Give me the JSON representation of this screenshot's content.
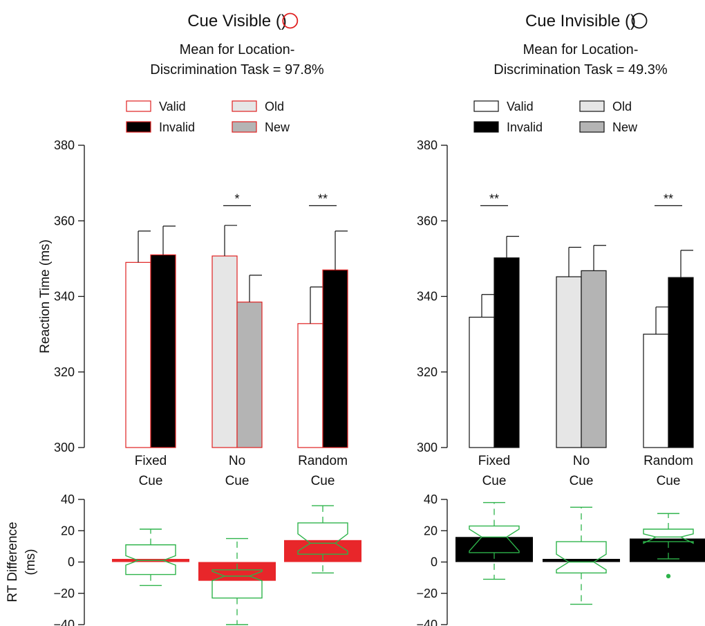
{
  "chart_data": [
    {
      "panel": "visible",
      "type": "bar",
      "title": "Cue Visible (",
      "title_close": ")",
      "title_marker_color": "#e02020",
      "subtitle_lines": [
        "Mean for Location-",
        "Discrimination Task = 97.8%"
      ],
      "ylabel": "Reaction Time (ms)",
      "ylim": [
        300,
        380
      ],
      "yticks": [
        "300",
        "320",
        "340",
        "360",
        "380"
      ],
      "bar_edge_color": "#e02020",
      "categories": [
        [
          "Fixed",
          "Cue"
        ],
        [
          "No",
          "Cue"
        ],
        [
          "Random",
          "Cue"
        ]
      ],
      "legend": [
        {
          "label": "Valid",
          "fill": "#ffffff"
        },
        {
          "label": "Old",
          "fill": "#e6e6e6"
        },
        {
          "label": "Invalid",
          "fill": "#000000"
        },
        {
          "label": "New",
          "fill": "#b4b4b4"
        }
      ],
      "bars": [
        [
          {
            "series": "Valid",
            "value": 349,
            "error": 8.3,
            "fill": "#ffffff"
          },
          {
            "series": "Invalid",
            "value": 351,
            "error": 7.6,
            "fill": "#000000"
          }
        ],
        [
          {
            "series": "Old",
            "value": 350.7,
            "error": 8.1,
            "fill": "#e6e6e6"
          },
          {
            "series": "New",
            "value": 338.5,
            "error": 7.1,
            "fill": "#b4b4b4"
          }
        ],
        [
          {
            "series": "Valid",
            "value": 332.8,
            "error": 9.7,
            "fill": "#ffffff"
          },
          {
            "series": "Invalid",
            "value": 347,
            "error": 10.3,
            "fill": "#000000"
          }
        ]
      ],
      "significance": [
        {
          "category": 1,
          "label": "*",
          "at": 364
        },
        {
          "category": 2,
          "label": "**",
          "at": 364
        }
      ],
      "diff": {
        "ylabel_lines": [
          "RT Difference",
          "(ms)"
        ],
        "ylim": [
          -40,
          40
        ],
        "yticks": [
          "40",
          "20",
          "0",
          "−20",
          "−40"
        ],
        "bar_color": "#e8262a",
        "box_color": "#2db34a",
        "bars": [
          2,
          -12,
          14
        ],
        "boxes": [
          {
            "q1": -8,
            "median": 1,
            "q3": 11,
            "notch_low": -2,
            "notch_high": 4,
            "whisker_low": -15,
            "whisker_high": 21,
            "outliers": []
          },
          {
            "q1": -23,
            "median": -9,
            "q3": -5,
            "notch_low": -12,
            "notch_high": -6,
            "whisker_low": -40,
            "whisker_high": 15,
            "outliers": []
          },
          {
            "q1": 5,
            "median": 12,
            "q3": 25,
            "notch_low": 7,
            "notch_high": 18,
            "whisker_low": -7,
            "whisker_high": 36,
            "outliers": []
          }
        ]
      }
    },
    {
      "panel": "invisible",
      "type": "bar",
      "title": "Cue Invisible (",
      "title_close": ")",
      "title_marker_color": "#111111",
      "subtitle_lines": [
        "Mean for Location-",
        "Discrimination Task = 49.3%"
      ],
      "ylabel": "",
      "ylim": [
        300,
        380
      ],
      "yticks": [
        "300",
        "320",
        "340",
        "360",
        "380"
      ],
      "bar_edge_color": "#111111",
      "categories": [
        [
          "Fixed",
          "Cue"
        ],
        [
          "No",
          "Cue"
        ],
        [
          "Random",
          "Cue"
        ]
      ],
      "legend": [
        {
          "label": "Valid",
          "fill": "#ffffff"
        },
        {
          "label": "Old",
          "fill": "#e6e6e6"
        },
        {
          "label": "Invalid",
          "fill": "#000000"
        },
        {
          "label": "New",
          "fill": "#b4b4b4"
        }
      ],
      "bars": [
        [
          {
            "series": "Valid",
            "value": 334.5,
            "error": 6,
            "fill": "#ffffff"
          },
          {
            "series": "Invalid",
            "value": 350.2,
            "error": 5.7,
            "fill": "#000000"
          }
        ],
        [
          {
            "series": "Old",
            "value": 345.2,
            "error": 7.8,
            "fill": "#e6e6e6"
          },
          {
            "series": "New",
            "value": 346.8,
            "error": 6.7,
            "fill": "#b4b4b4"
          }
        ],
        [
          {
            "series": "Valid",
            "value": 330,
            "error": 7.2,
            "fill": "#ffffff"
          },
          {
            "series": "Invalid",
            "value": 345,
            "error": 7.2,
            "fill": "#000000"
          }
        ]
      ],
      "significance": [
        {
          "category": 0,
          "label": "**",
          "at": 364
        },
        {
          "category": 2,
          "label": "**",
          "at": 364
        }
      ],
      "diff": {
        "ylabel_lines": [],
        "ylim": [
          -40,
          40
        ],
        "yticks": [
          "40",
          "20",
          "0",
          "−20",
          "−40"
        ],
        "bar_color": "#000000",
        "box_color": "#2db34a",
        "bars": [
          16,
          2,
          15
        ],
        "boxes": [
          {
            "q1": 6,
            "median": 16,
            "q3": 23,
            "notch_low": 7,
            "notch_high": 21,
            "whisker_low": -11,
            "whisker_high": 38,
            "outliers": []
          },
          {
            "q1": -7,
            "median": 0,
            "q3": 13,
            "notch_low": -5,
            "notch_high": 5,
            "whisker_low": -27,
            "whisker_high": 35,
            "outliers": []
          },
          {
            "q1": 13,
            "median": 16,
            "q3": 21,
            "notch_low": 12,
            "notch_high": 18,
            "whisker_low": 2,
            "whisker_high": 31,
            "outliers": [
              -9
            ]
          }
        ]
      }
    }
  ]
}
